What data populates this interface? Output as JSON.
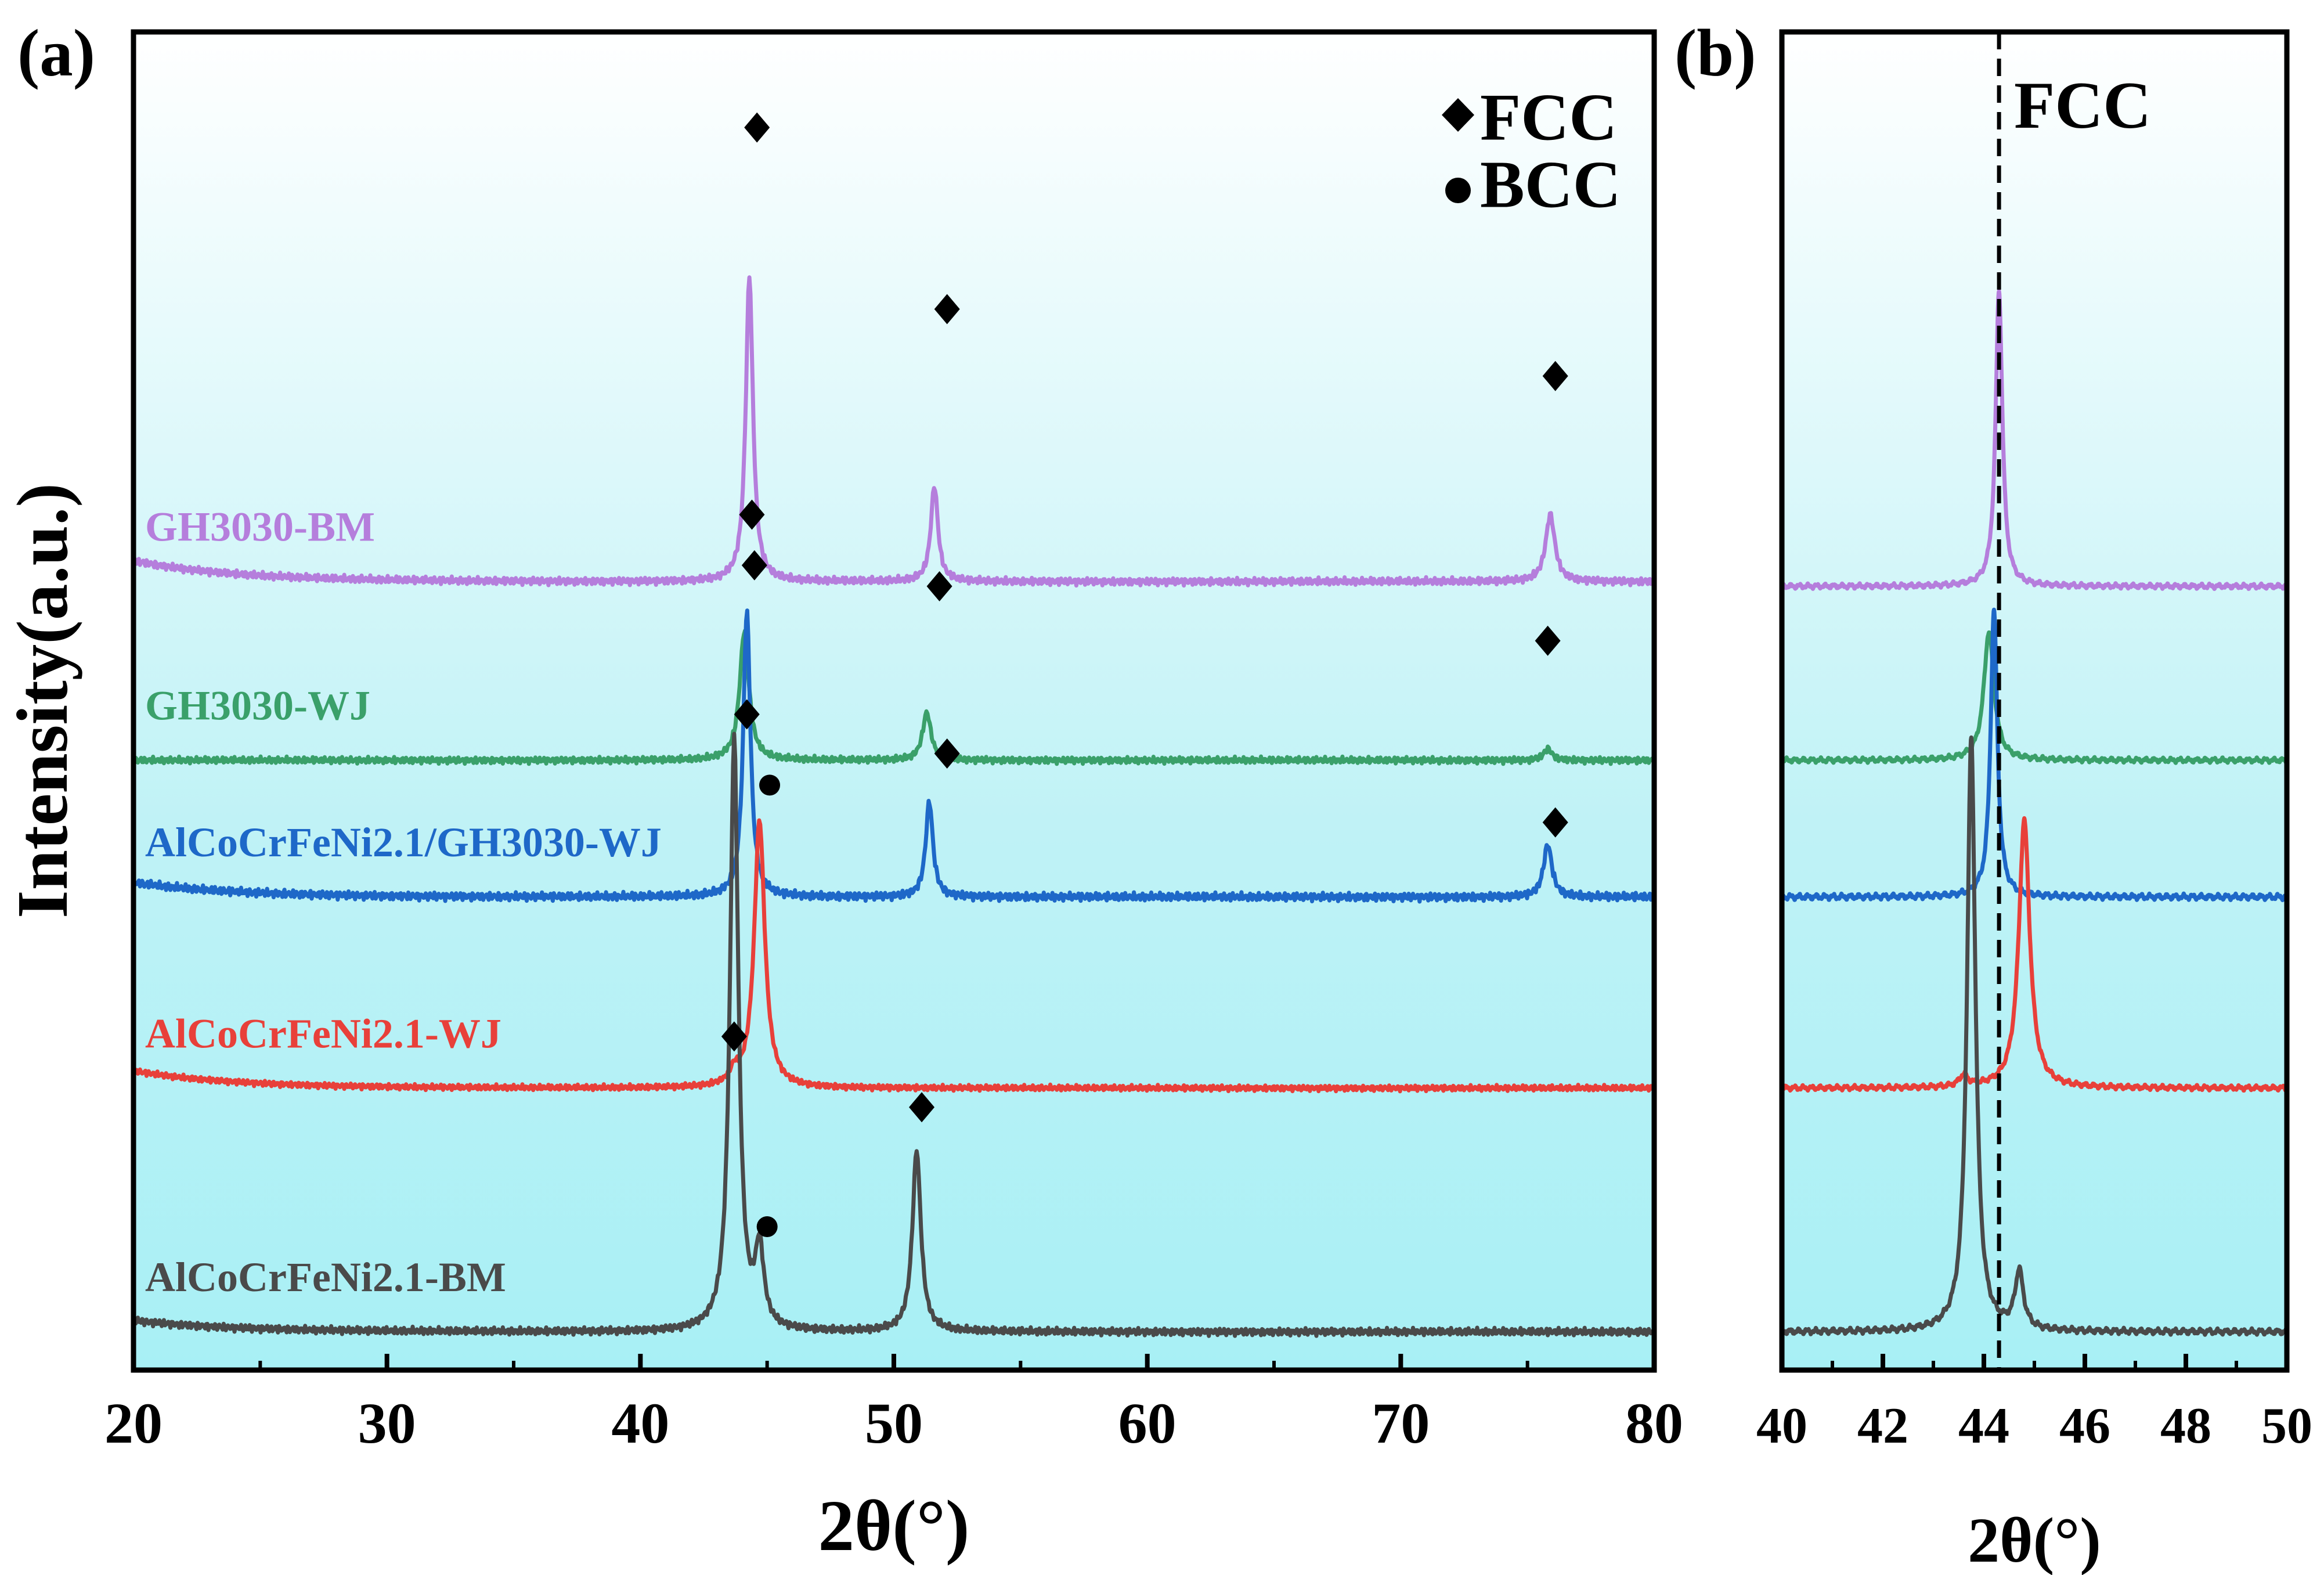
{
  "chart_data": [
    {
      "id": "a",
      "panel_label": "(a)",
      "type": "line",
      "xlabel": "2θ(°)",
      "ylabel": "Intensity(a.u.)",
      "xlim": [
        20,
        80
      ],
      "xticks": [
        20,
        30,
        40,
        50,
        60,
        70,
        80
      ],
      "legend": {
        "position": "top-right",
        "entries": [
          {
            "marker": "diamond",
            "label": "FCC"
          },
          {
            "marker": "circle",
            "label": "BCC"
          }
        ]
      },
      "series": [
        {
          "name": "GH3030-BM",
          "color": "#B57EDC",
          "baseline": 8.25,
          "noise": 0.045,
          "start_offset": 0.22,
          "peaks": [
            [
              44.3,
              3.2,
              0.17
            ],
            [
              51.6,
              1.0,
              0.17
            ],
            [
              75.9,
              0.7,
              0.22
            ]
          ],
          "markers": [
            {
              "type": "diamond",
              "x": 44.6,
              "y": 13.0
            },
            {
              "type": "diamond",
              "x": 52.1,
              "y": 11.1
            },
            {
              "type": "diamond",
              "x": 76.1,
              "y": 10.4
            }
          ]
        },
        {
          "name": "GH3030-WJ",
          "color": "#3AA06A",
          "baseline": 6.38,
          "noise": 0.04,
          "start_offset": 0,
          "peaks": [
            [
              44.1,
              1.35,
              0.22
            ],
            [
              51.3,
              0.5,
              0.2
            ],
            [
              75.8,
              0.12,
              0.2
            ]
          ],
          "markers": [
            {
              "type": "diamond",
              "x": 44.4,
              "y": 8.95
            },
            {
              "type": "diamond",
              "x": 51.8,
              "y": 8.2
            },
            {
              "type": "diamond",
              "x": 75.8,
              "y": 7.63
            }
          ]
        },
        {
          "name": "AlCoCrFeNi2.1/GH3030-WJ",
          "color": "#1E68C8",
          "baseline": 4.95,
          "noise": 0.05,
          "start_offset": 0.15,
          "peaks": [
            [
              44.2,
              3.0,
              0.17
            ],
            [
              51.4,
              1.0,
              0.17
            ],
            [
              75.8,
              0.55,
              0.2
            ]
          ],
          "markers": [
            {
              "type": "diamond",
              "x": 44.5,
              "y": 8.42
            },
            {
              "type": "diamond",
              "x": 52.1,
              "y": 6.45
            },
            {
              "type": "diamond",
              "x": 76.1,
              "y": 5.73
            }
          ]
        },
        {
          "name": "AlCoCrFeNi2.1-WJ",
          "color": "#E8403A",
          "baseline": 2.95,
          "noise": 0.035,
          "start_offset": 0.18,
          "peaks": [
            [
              44.7,
              2.8,
              0.25
            ],
            [
              43.7,
              0.13,
              0.2
            ]
          ],
          "markers": [
            {
              "type": "circle",
              "x": 45.1,
              "y": 6.12
            },
            {
              "type": "diamond",
              "x": 43.7,
              "y": 3.49
            }
          ]
        },
        {
          "name": "AlCoCrFeNi2.1-BM",
          "color": "#4A4A4A",
          "baseline": 0.4,
          "noise": 0.045,
          "start_offset": 0.12,
          "peaks": [
            [
              43.7,
              6.2,
              0.2
            ],
            [
              44.7,
              0.8,
              0.2
            ],
            [
              50.9,
              1.9,
              0.2
            ]
          ],
          "markers": [
            {
              "type": "diamond",
              "x": 44.2,
              "y": 6.86
            },
            {
              "type": "circle",
              "x": 45.0,
              "y": 1.5
            },
            {
              "type": "diamond",
              "x": 51.1,
              "y": 2.75
            }
          ]
        }
      ]
    },
    {
      "id": "b",
      "panel_label": "(b)",
      "type": "line",
      "xlabel": "2θ(°)",
      "xlim": [
        40,
        50
      ],
      "xticks": [
        40,
        42,
        44,
        46,
        48,
        50
      ],
      "reference_line": {
        "x": 44.3,
        "label": "FCC",
        "style": "dashed"
      },
      "series": [
        {
          "name": "GH3030-BM",
          "color": "#B57EDC",
          "baseline": 8.2,
          "noise": 0.03,
          "peaks": [
            [
              44.3,
              3.1,
              0.08
            ]
          ]
        },
        {
          "name": "GH3030-WJ",
          "color": "#3AA06A",
          "baseline": 6.38,
          "noise": 0.03,
          "peaks": [
            [
              44.1,
              1.35,
              0.12
            ]
          ]
        },
        {
          "name": "AlCoCrFeNi2.1/GH3030-WJ",
          "color": "#1E68C8",
          "baseline": 4.95,
          "noise": 0.035,
          "peaks": [
            [
              44.2,
              3.0,
              0.08
            ]
          ]
        },
        {
          "name": "AlCoCrFeNi2.1-WJ",
          "color": "#E8403A",
          "baseline": 2.95,
          "noise": 0.03,
          "peaks": [
            [
              44.8,
              2.8,
              0.13
            ],
            [
              43.6,
              0.12,
              0.1
            ]
          ]
        },
        {
          "name": "AlCoCrFeNi2.1-BM",
          "color": "#4A4A4A",
          "baseline": 0.4,
          "noise": 0.035,
          "peaks": [
            [
              43.75,
              6.2,
              0.1
            ],
            [
              44.7,
              0.6,
              0.1
            ]
          ]
        }
      ]
    }
  ]
}
